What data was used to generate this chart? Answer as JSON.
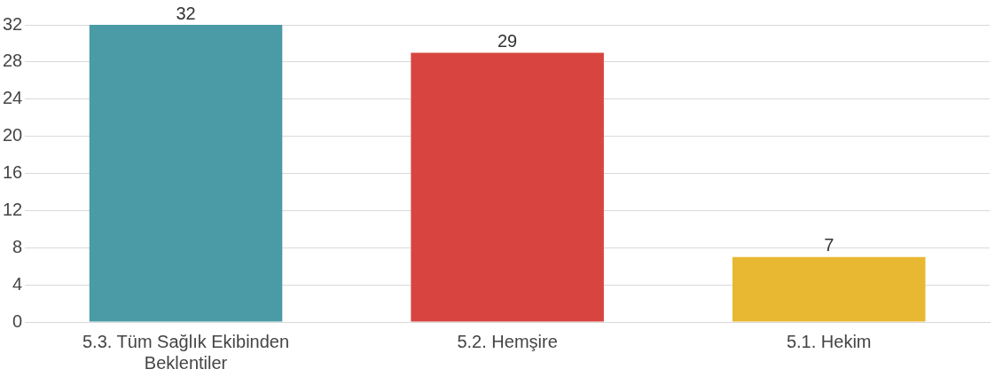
{
  "chart_data": {
    "type": "bar",
    "categories": [
      "5.3. Tüm Sağlık Ekibinden Beklentiler",
      "5.2. Hemşire",
      "5.1. Hekim"
    ],
    "values": [
      32,
      29,
      7
    ],
    "colors": [
      "#4a9ba6",
      "#d8443f",
      "#e8b832"
    ],
    "ylim": [
      0,
      32
    ],
    "yticks": [
      0,
      4,
      8,
      12,
      16,
      20,
      24,
      28,
      32
    ],
    "grid": "y",
    "data_labels": true,
    "legend": false
  }
}
